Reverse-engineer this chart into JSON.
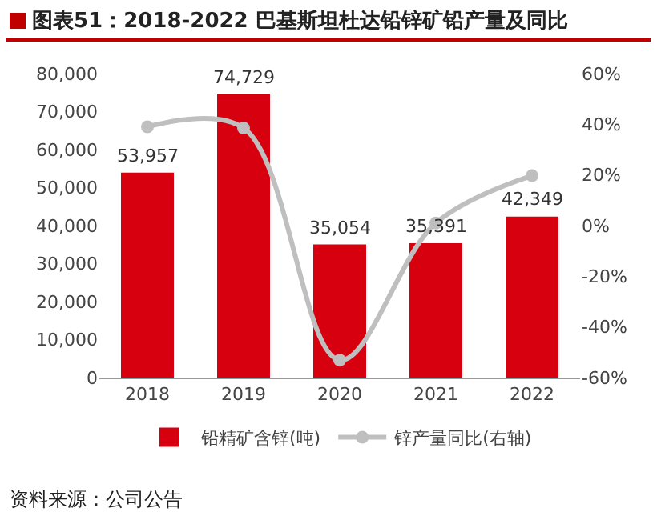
{
  "chart_data": {
    "type": "bar",
    "title": "图表51：2018-2022 巴基斯坦杜达铅锌矿铅产量及同比",
    "categories": [
      "2018",
      "2019",
      "2020",
      "2021",
      "2022"
    ],
    "series": [
      {
        "name": "铅精矿含锌(吨)",
        "color": "#d7000f",
        "values": [
          53957,
          74729,
          35054,
          35391,
          42349
        ],
        "value_labels": [
          "53,957",
          "74,729",
          "35,054",
          "35,391",
          "42,349"
        ]
      },
      {
        "name": "锌产量同比(右轴)",
        "type": "line",
        "axis": "y2",
        "color": "#bfbfbf",
        "values": [
          39,
          38.5,
          -53.1,
          1.0,
          19.7
        ]
      }
    ],
    "ylim": [
      0,
      80000
    ],
    "yticks": [
      {
        "value": 0,
        "label": "0"
      },
      {
        "value": 10000,
        "label": "10,000"
      },
      {
        "value": 20000,
        "label": "20,000"
      },
      {
        "value": 30000,
        "label": "30,000"
      },
      {
        "value": 40000,
        "label": "40,000"
      },
      {
        "value": 50000,
        "label": "50,000"
      },
      {
        "value": 60000,
        "label": "60,000"
      },
      {
        "value": 70000,
        "label": "70,000"
      },
      {
        "value": 80000,
        "label": "80,000"
      }
    ],
    "y2lim": [
      -60,
      60
    ],
    "y2ticks": [
      {
        "value": -60,
        "label": "-60%"
      },
      {
        "value": -40,
        "label": "-40%"
      },
      {
        "value": -20,
        "label": "-20%"
      },
      {
        "value": 0,
        "label": "0%"
      },
      {
        "value": 20,
        "label": "20%"
      },
      {
        "value": 40,
        "label": "40%"
      },
      {
        "value": 60,
        "label": "60%"
      }
    ],
    "grid": false,
    "legend": "bottom",
    "marker": "circle",
    "line_style": "solid",
    "annotations": [
      "资料来源：公司公告"
    ]
  }
}
